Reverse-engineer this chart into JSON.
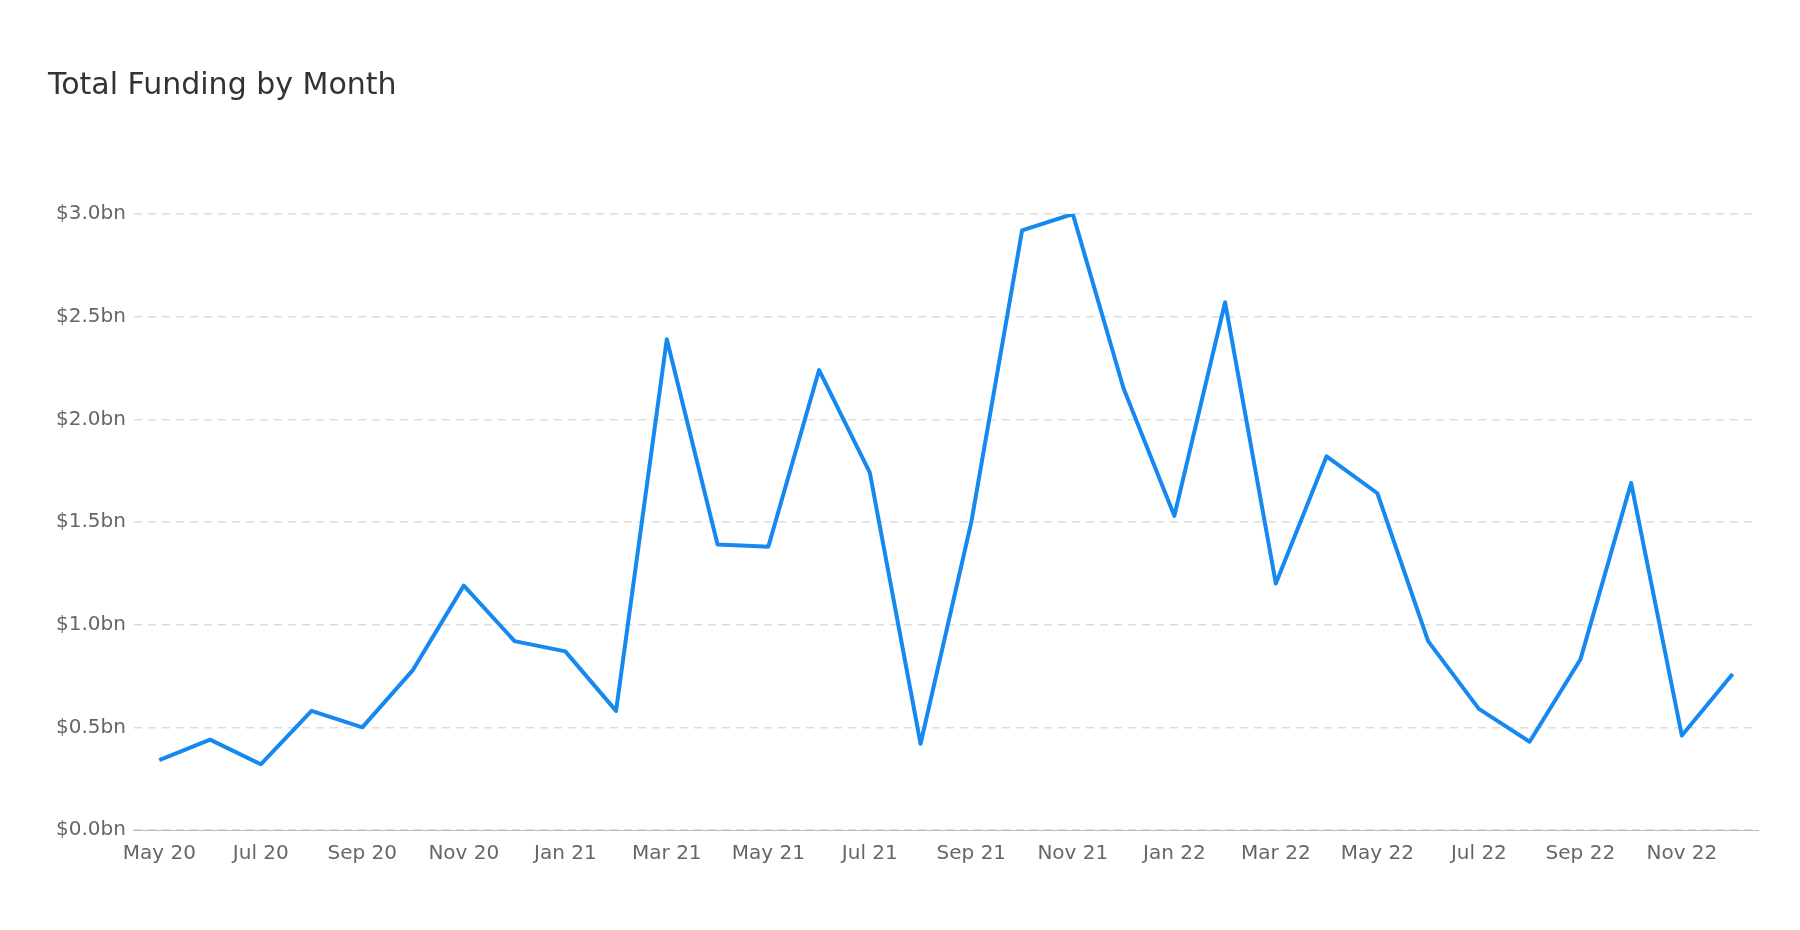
{
  "chart_data": {
    "type": "line",
    "title": "Total Funding by Month",
    "categories": [
      "May 20",
      null,
      "Jul 20",
      null,
      "Sep 20",
      null,
      "Nov 20",
      null,
      "Jan 21",
      null,
      "Mar 21",
      null,
      "May 21",
      null,
      "Jul 21",
      null,
      "Sep 21",
      null,
      "Nov 21",
      null,
      "Jan 22",
      null,
      "Mar 22",
      null,
      "May 22",
      null,
      "Jul 22",
      null,
      "Sep 22",
      null,
      "Nov 22",
      null
    ],
    "series": [
      {
        "color": "#1589f0",
        "values": [
          0.34,
          0.44,
          0.32,
          0.58,
          0.5,
          0.78,
          1.19,
          0.92,
          0.87,
          0.58,
          2.39,
          1.39,
          1.38,
          2.24,
          1.74,
          0.42,
          1.5,
          2.92,
          3.0,
          2.15,
          1.53,
          2.57,
          1.2,
          1.82,
          1.64,
          0.92,
          0.59,
          0.43,
          0.83,
          1.69,
          0.46,
          0.76
        ]
      }
    ],
    "ylim": [
      0,
      3
    ],
    "yticks": [
      {
        "value": 0,
        "label": "$0.0bn"
      },
      {
        "value": 0.5,
        "label": "$0.5bn"
      },
      {
        "value": 1,
        "label": "$1.0bn"
      },
      {
        "value": 1.5,
        "label": "$1.5bn"
      },
      {
        "value": 2,
        "label": "$2.0bn"
      },
      {
        "value": 2.5,
        "label": "$2.5bn"
      },
      {
        "value": 3,
        "label": "$3.0bn"
      }
    ],
    "grid": "y",
    "legend": false,
    "marker": "none",
    "line_style": "solid"
  }
}
